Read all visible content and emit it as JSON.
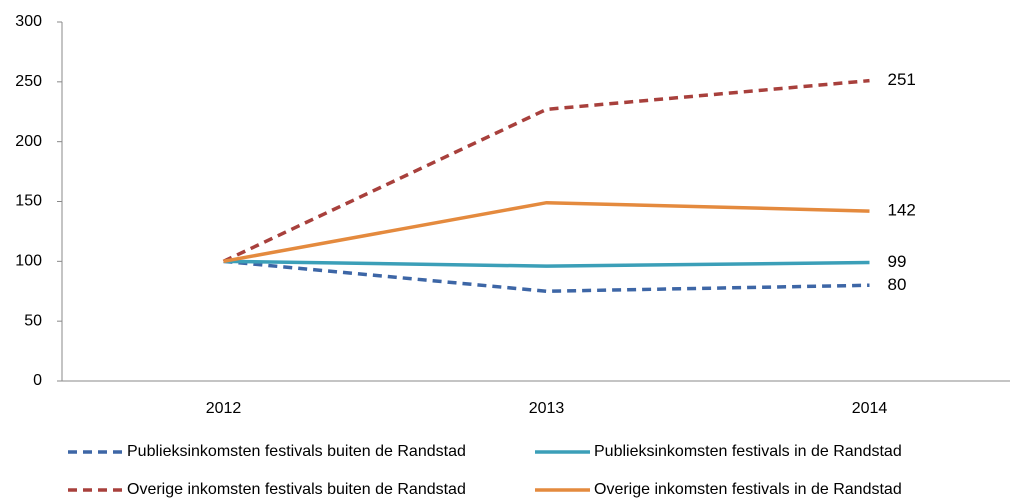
{
  "chart_data": {
    "type": "line",
    "categories": [
      "2012",
      "2013",
      "2014"
    ],
    "series": [
      {
        "name": "Publieksinkomsten festivals buiten de Randstad",
        "color": "#3d66a6",
        "dashed": true,
        "values": [
          100,
          75,
          80
        ]
      },
      {
        "name": "Publieksinkomsten festivals in de Randstad",
        "color": "#3b9fb8",
        "dashed": false,
        "values": [
          100,
          96,
          99
        ]
      },
      {
        "name": "Overige inkomsten festivals buiten de Randstad",
        "color": "#a8403c",
        "dashed": true,
        "values": [
          100,
          227,
          251
        ]
      },
      {
        "name": "Overige inkomsten festivals in de Randstad",
        "color": "#e48a3e",
        "dashed": false,
        "values": [
          100,
          149,
          142
        ]
      }
    ],
    "label_points": "last",
    "ylim": [
      0,
      300
    ],
    "yticks": [
      0,
      50,
      100,
      150,
      200,
      250,
      300
    ],
    "legend": "bottom"
  }
}
